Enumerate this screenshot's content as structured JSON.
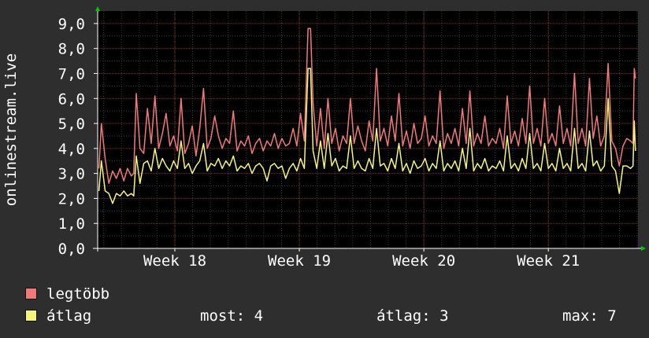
{
  "chart_data": {
    "type": "line",
    "ylabel": "onlinestream.live",
    "ylim": [
      0,
      9.5
    ],
    "yticks": [
      {
        "value": 0,
        "label": "0,0"
      },
      {
        "value": 1,
        "label": "1,0"
      },
      {
        "value": 2,
        "label": "2,0"
      },
      {
        "value": 3,
        "label": "3,0"
      },
      {
        "value": 4,
        "label": "4,0"
      },
      {
        "value": 5,
        "label": "5,0"
      },
      {
        "value": 6,
        "label": "6,0"
      },
      {
        "value": 7,
        "label": "7,0"
      },
      {
        "value": 8,
        "label": "8,0"
      },
      {
        "value": 9,
        "label": "9,0"
      }
    ],
    "x_tick_labels": [
      {
        "week": 18,
        "label": "Week 18"
      },
      {
        "week": 19,
        "label": "Week 19"
      },
      {
        "week": 20,
        "label": "Week 20"
      },
      {
        "week": 21,
        "label": "Week 21"
      }
    ],
    "xlim": [
      17.38,
      21.72
    ],
    "grid": true,
    "legend_placement": "bottom",
    "series": [
      {
        "name": "legtöbb",
        "color": "#f07a7a",
        "points": [
          [
            17.39,
            3.2
          ],
          [
            17.41,
            5.0
          ],
          [
            17.44,
            3.6
          ],
          [
            17.47,
            2.6
          ],
          [
            17.5,
            3.1
          ],
          [
            17.53,
            2.8
          ],
          [
            17.56,
            3.2
          ],
          [
            17.59,
            2.7
          ],
          [
            17.62,
            3.2
          ],
          [
            17.65,
            2.9
          ],
          [
            17.67,
            3.0
          ],
          [
            17.69,
            6.2
          ],
          [
            17.72,
            4.0
          ],
          [
            17.75,
            3.8
          ],
          [
            17.78,
            5.6
          ],
          [
            17.81,
            4.2
          ],
          [
            17.84,
            6.1
          ],
          [
            17.87,
            4.0
          ],
          [
            17.9,
            4.6
          ],
          [
            17.93,
            5.4
          ],
          [
            17.96,
            4.1
          ],
          [
            17.99,
            4.5
          ],
          [
            18.02,
            3.9
          ],
          [
            18.05,
            6.0
          ],
          [
            18.08,
            3.8
          ],
          [
            18.11,
            4.2
          ],
          [
            18.14,
            4.9
          ],
          [
            18.17,
            3.7
          ],
          [
            18.2,
            4.8
          ],
          [
            18.23,
            6.4
          ],
          [
            18.26,
            4.0
          ],
          [
            18.29,
            4.4
          ],
          [
            18.32,
            5.3
          ],
          [
            18.35,
            4.5
          ],
          [
            18.38,
            4.0
          ],
          [
            18.41,
            4.4
          ],
          [
            18.44,
            4.2
          ],
          [
            18.47,
            5.5
          ],
          [
            18.5,
            3.9
          ],
          [
            18.53,
            4.3
          ],
          [
            18.56,
            4.1
          ],
          [
            18.59,
            4.5
          ],
          [
            18.62,
            3.8
          ],
          [
            18.65,
            4.2
          ],
          [
            18.68,
            4.4
          ],
          [
            18.71,
            3.9
          ],
          [
            18.74,
            4.3
          ],
          [
            18.77,
            4.1
          ],
          [
            18.8,
            4.6
          ],
          [
            18.83,
            4.0
          ],
          [
            18.86,
            4.4
          ],
          [
            18.89,
            4.1
          ],
          [
            18.92,
            4.2
          ],
          [
            18.95,
            4.8
          ],
          [
            18.98,
            4.1
          ],
          [
            19.01,
            5.4
          ],
          [
            19.04,
            4.3
          ],
          [
            19.07,
            8.8
          ],
          [
            19.09,
            8.8
          ],
          [
            19.11,
            5.8
          ],
          [
            19.14,
            4.1
          ],
          [
            19.17,
            5.6
          ],
          [
            19.2,
            4.0
          ],
          [
            19.23,
            6.0
          ],
          [
            19.26,
            4.2
          ],
          [
            19.29,
            4.8
          ],
          [
            19.32,
            3.9
          ],
          [
            19.35,
            4.5
          ],
          [
            19.38,
            4.2
          ],
          [
            19.41,
            6.0
          ],
          [
            19.44,
            4.2
          ],
          [
            19.47,
            4.9
          ],
          [
            19.5,
            4.3
          ],
          [
            19.53,
            3.9
          ],
          [
            19.56,
            5.1
          ],
          [
            19.59,
            4.3
          ],
          [
            19.62,
            7.2
          ],
          [
            19.65,
            4.3
          ],
          [
            19.68,
            4.8
          ],
          [
            19.71,
            4.1
          ],
          [
            19.74,
            5.3
          ],
          [
            19.77,
            4.3
          ],
          [
            19.8,
            6.2
          ],
          [
            19.83,
            4.1
          ],
          [
            19.86,
            4.7
          ],
          [
            19.89,
            4.0
          ],
          [
            19.92,
            5.0
          ],
          [
            19.95,
            4.2
          ],
          [
            19.98,
            4.4
          ],
          [
            20.01,
            5.3
          ],
          [
            20.04,
            4.1
          ],
          [
            20.07,
            4.5
          ],
          [
            20.1,
            4.2
          ],
          [
            20.13,
            6.3
          ],
          [
            20.16,
            4.0
          ],
          [
            20.19,
            4.6
          ],
          [
            20.22,
            4.2
          ],
          [
            20.25,
            4.8
          ],
          [
            20.28,
            4.1
          ],
          [
            20.31,
            5.6
          ],
          [
            20.34,
            4.2
          ],
          [
            20.37,
            6.3
          ],
          [
            20.4,
            4.1
          ],
          [
            20.43,
            4.6
          ],
          [
            20.46,
            4.2
          ],
          [
            20.49,
            5.3
          ],
          [
            20.52,
            4.1
          ],
          [
            20.55,
            4.4
          ],
          [
            20.58,
            4.2
          ],
          [
            20.61,
            4.8
          ],
          [
            20.64,
            4.0
          ],
          [
            20.67,
            6.1
          ],
          [
            20.7,
            4.2
          ],
          [
            20.73,
            4.7
          ],
          [
            20.76,
            4.1
          ],
          [
            20.79,
            5.2
          ],
          [
            20.82,
            4.2
          ],
          [
            20.85,
            6.5
          ],
          [
            20.88,
            4.2
          ],
          [
            20.91,
            4.8
          ],
          [
            20.94,
            4.1
          ],
          [
            20.97,
            6.0
          ],
          [
            21.0,
            4.2
          ],
          [
            21.03,
            4.6
          ],
          [
            21.06,
            4.1
          ],
          [
            21.09,
            5.7
          ],
          [
            21.12,
            4.2
          ],
          [
            21.15,
            4.8
          ],
          [
            21.18,
            4.1
          ],
          [
            21.21,
            7.0
          ],
          [
            21.24,
            4.2
          ],
          [
            21.27,
            4.8
          ],
          [
            21.3,
            4.1
          ],
          [
            21.33,
            6.8
          ],
          [
            21.36,
            4.4
          ],
          [
            21.39,
            5.3
          ],
          [
            21.42,
            4.1
          ],
          [
            21.45,
            4.5
          ],
          [
            21.48,
            7.4
          ],
          [
            21.51,
            4.3
          ],
          [
            21.54,
            4.0
          ],
          [
            21.57,
            3.3
          ],
          [
            21.6,
            4.1
          ],
          [
            21.63,
            4.4
          ],
          [
            21.66,
            4.3
          ],
          [
            21.68,
            4.2
          ],
          [
            21.69,
            7.2
          ],
          [
            21.7,
            6.8
          ]
        ]
      },
      {
        "name": "átlag",
        "color": "#f5f57a",
        "points": [
          [
            17.39,
            2.3
          ],
          [
            17.41,
            3.5
          ],
          [
            17.44,
            2.3
          ],
          [
            17.47,
            2.2
          ],
          [
            17.5,
            1.8
          ],
          [
            17.53,
            2.2
          ],
          [
            17.56,
            2.1
          ],
          [
            17.59,
            2.3
          ],
          [
            17.62,
            2.1
          ],
          [
            17.65,
            2.2
          ],
          [
            17.67,
            2.1
          ],
          [
            17.69,
            3.7
          ],
          [
            17.72,
            2.6
          ],
          [
            17.75,
            3.4
          ],
          [
            17.78,
            3.5
          ],
          [
            17.81,
            3.1
          ],
          [
            17.84,
            4.0
          ],
          [
            17.87,
            3.2
          ],
          [
            17.9,
            3.6
          ],
          [
            17.93,
            3.3
          ],
          [
            17.96,
            3.1
          ],
          [
            17.99,
            3.5
          ],
          [
            18.02,
            3.2
          ],
          [
            18.05,
            4.3
          ],
          [
            18.08,
            3.2
          ],
          [
            18.11,
            3.4
          ],
          [
            18.14,
            3.0
          ],
          [
            18.17,
            3.3
          ],
          [
            18.2,
            3.5
          ],
          [
            18.23,
            4.2
          ],
          [
            18.26,
            3.1
          ],
          [
            18.29,
            3.4
          ],
          [
            18.32,
            3.3
          ],
          [
            18.35,
            3.6
          ],
          [
            18.38,
            3.2
          ],
          [
            18.41,
            3.5
          ],
          [
            18.44,
            3.3
          ],
          [
            18.47,
            3.7
          ],
          [
            18.5,
            3.1
          ],
          [
            18.53,
            3.3
          ],
          [
            18.56,
            3.2
          ],
          [
            18.59,
            3.4
          ],
          [
            18.62,
            3.0
          ],
          [
            18.65,
            3.3
          ],
          [
            18.68,
            3.4
          ],
          [
            18.71,
            3.2
          ],
          [
            18.74,
            2.7
          ],
          [
            18.77,
            3.3
          ],
          [
            18.8,
            3.4
          ],
          [
            18.83,
            3.2
          ],
          [
            18.86,
            3.3
          ],
          [
            18.89,
            2.8
          ],
          [
            18.92,
            3.2
          ],
          [
            18.95,
            3.4
          ],
          [
            18.98,
            3.1
          ],
          [
            19.01,
            3.6
          ],
          [
            19.04,
            3.2
          ],
          [
            19.07,
            7.2
          ],
          [
            19.09,
            7.2
          ],
          [
            19.11,
            3.9
          ],
          [
            19.14,
            3.2
          ],
          [
            19.17,
            4.3
          ],
          [
            19.2,
            3.2
          ],
          [
            19.23,
            4.6
          ],
          [
            19.26,
            3.3
          ],
          [
            19.29,
            3.6
          ],
          [
            19.32,
            3.1
          ],
          [
            19.35,
            3.3
          ],
          [
            19.38,
            3.2
          ],
          [
            19.41,
            4.5
          ],
          [
            19.44,
            3.2
          ],
          [
            19.47,
            3.5
          ],
          [
            19.5,
            3.2
          ],
          [
            19.53,
            3.1
          ],
          [
            19.56,
            3.6
          ],
          [
            19.59,
            3.2
          ],
          [
            19.62,
            4.8
          ],
          [
            19.65,
            3.3
          ],
          [
            19.68,
            3.4
          ],
          [
            19.71,
            3.1
          ],
          [
            19.74,
            3.6
          ],
          [
            19.77,
            3.2
          ],
          [
            19.8,
            4.2
          ],
          [
            19.83,
            3.1
          ],
          [
            19.86,
            3.4
          ],
          [
            19.89,
            3.0
          ],
          [
            19.92,
            3.5
          ],
          [
            19.95,
            3.2
          ],
          [
            19.98,
            3.3
          ],
          [
            20.01,
            3.6
          ],
          [
            20.04,
            3.1
          ],
          [
            20.07,
            3.4
          ],
          [
            20.1,
            3.2
          ],
          [
            20.13,
            4.3
          ],
          [
            20.16,
            3.1
          ],
          [
            20.19,
            3.4
          ],
          [
            20.22,
            3.2
          ],
          [
            20.25,
            3.5
          ],
          [
            20.28,
            3.1
          ],
          [
            20.31,
            4.0
          ],
          [
            20.34,
            3.2
          ],
          [
            20.37,
            4.8
          ],
          [
            20.4,
            3.1
          ],
          [
            20.43,
            3.4
          ],
          [
            20.46,
            3.2
          ],
          [
            20.49,
            3.6
          ],
          [
            20.52,
            3.1
          ],
          [
            20.55,
            3.3
          ],
          [
            20.58,
            3.2
          ],
          [
            20.61,
            3.5
          ],
          [
            20.64,
            3.1
          ],
          [
            20.67,
            4.5
          ],
          [
            20.7,
            3.2
          ],
          [
            20.73,
            3.4
          ],
          [
            20.76,
            3.1
          ],
          [
            20.79,
            3.6
          ],
          [
            20.82,
            3.2
          ],
          [
            20.85,
            4.6
          ],
          [
            20.88,
            3.2
          ],
          [
            20.91,
            3.4
          ],
          [
            20.94,
            3.1
          ],
          [
            20.97,
            4.2
          ],
          [
            21.0,
            3.2
          ],
          [
            21.03,
            3.4
          ],
          [
            21.06,
            3.1
          ],
          [
            21.09,
            4.0
          ],
          [
            21.12,
            3.2
          ],
          [
            21.15,
            3.4
          ],
          [
            21.18,
            3.1
          ],
          [
            21.21,
            4.8
          ],
          [
            21.24,
            3.2
          ],
          [
            21.27,
            3.4
          ],
          [
            21.3,
            3.1
          ],
          [
            21.33,
            4.7
          ],
          [
            21.36,
            3.3
          ],
          [
            21.39,
            3.5
          ],
          [
            21.42,
            3.1
          ],
          [
            21.45,
            3.3
          ],
          [
            21.48,
            6.0
          ],
          [
            21.51,
            3.3
          ],
          [
            21.54,
            3.1
          ],
          [
            21.57,
            2.2
          ],
          [
            21.6,
            3.3
          ],
          [
            21.63,
            3.3
          ],
          [
            21.66,
            3.2
          ],
          [
            21.68,
            3.3
          ],
          [
            21.69,
            5.1
          ],
          [
            21.7,
            3.9
          ]
        ]
      }
    ]
  },
  "legend": [
    {
      "label": "legtöbb",
      "color": "#f07a7a"
    },
    {
      "label": "átlag",
      "color": "#f5f57a"
    }
  ],
  "stats": {
    "most": "most: 4",
    "atlag": "átlag: 3",
    "max": "max: 7"
  },
  "colors": {
    "background": "#2e2e2e",
    "plot_background": "#000000",
    "major_grid": "#8a3030",
    "minor_grid": "#3a3a3a",
    "axis_arrow": "#00cc00"
  }
}
